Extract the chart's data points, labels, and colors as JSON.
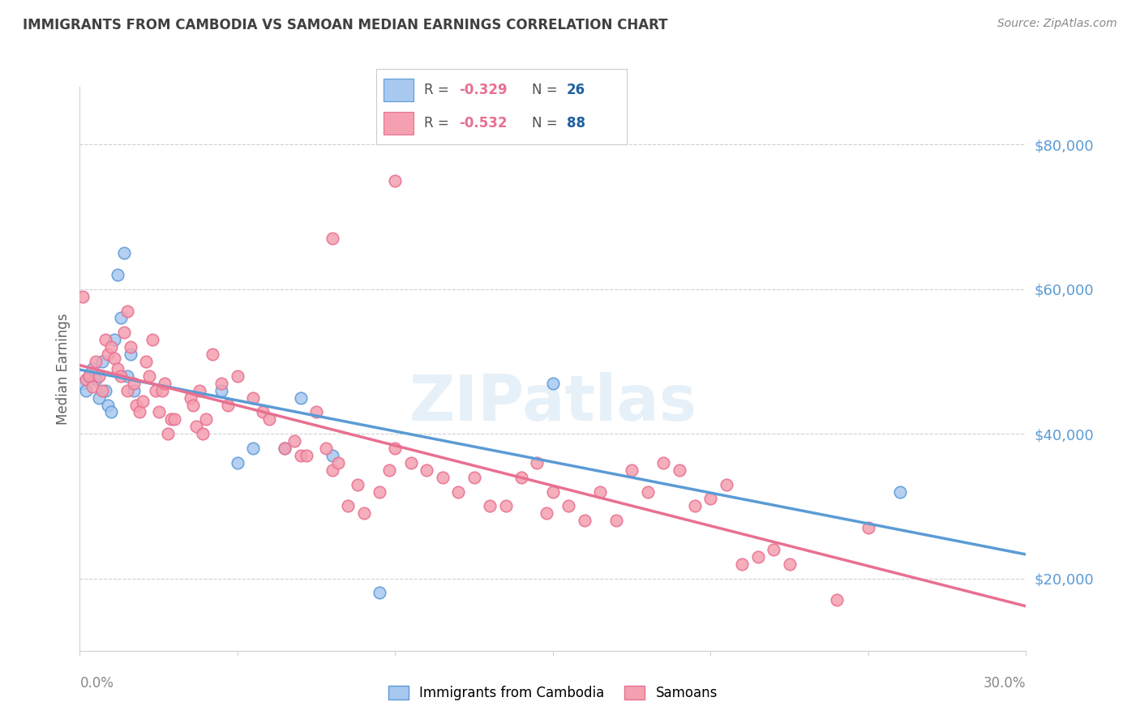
{
  "title": "IMMIGRANTS FROM CAMBODIA VS SAMOAN MEDIAN EARNINGS CORRELATION CHART",
  "source": "Source: ZipAtlas.com",
  "ylabel": "Median Earnings",
  "yticks": [
    20000,
    40000,
    60000,
    80000
  ],
  "ytick_labels": [
    "$20,000",
    "$40,000",
    "$60,000",
    "$80,000"
  ],
  "watermark": "ZIPatlas",
  "cambodia_color": "#a8c8f0",
  "samoan_color": "#f4a0b0",
  "cambodia_line_color": "#5b9bd5",
  "samoan_line_color": "#e87090",
  "background_color": "#ffffff",
  "grid_color": "#d0d0d0",
  "title_color": "#404040",
  "axis_label_color": "#5b9bd5",
  "legend_R_color": "#e87090",
  "legend_N_color": "#2060a0",
  "xlim": [
    0.0,
    0.3
  ],
  "ylim": [
    10000,
    88000
  ],
  "cambodia_points": [
    [
      0.001,
      47000
    ],
    [
      0.002,
      46000
    ],
    [
      0.003,
      48000
    ],
    [
      0.004,
      49000
    ],
    [
      0.005,
      47500
    ],
    [
      0.006,
      45000
    ],
    [
      0.007,
      50000
    ],
    [
      0.008,
      46000
    ],
    [
      0.009,
      44000
    ],
    [
      0.01,
      43000
    ],
    [
      0.011,
      53000
    ],
    [
      0.012,
      62000
    ],
    [
      0.013,
      56000
    ],
    [
      0.014,
      65000
    ],
    [
      0.015,
      48000
    ],
    [
      0.016,
      51000
    ],
    [
      0.017,
      46000
    ],
    [
      0.045,
      46000
    ],
    [
      0.05,
      36000
    ],
    [
      0.055,
      38000
    ],
    [
      0.065,
      38000
    ],
    [
      0.07,
      45000
    ],
    [
      0.08,
      37000
    ],
    [
      0.15,
      47000
    ],
    [
      0.26,
      32000
    ],
    [
      0.095,
      18000
    ]
  ],
  "samoan_points": [
    [
      0.001,
      59000
    ],
    [
      0.002,
      47500
    ],
    [
      0.003,
      48000
    ],
    [
      0.004,
      46500
    ],
    [
      0.005,
      50000
    ],
    [
      0.006,
      48000
    ],
    [
      0.007,
      46000
    ],
    [
      0.008,
      53000
    ],
    [
      0.009,
      51000
    ],
    [
      0.01,
      52000
    ],
    [
      0.011,
      50500
    ],
    [
      0.012,
      49000
    ],
    [
      0.013,
      48000
    ],
    [
      0.014,
      54000
    ],
    [
      0.015,
      46000
    ],
    [
      0.016,
      52000
    ],
    [
      0.017,
      47000
    ],
    [
      0.018,
      44000
    ],
    [
      0.019,
      43000
    ],
    [
      0.02,
      44500
    ],
    [
      0.021,
      50000
    ],
    [
      0.022,
      48000
    ],
    [
      0.023,
      53000
    ],
    [
      0.024,
      46000
    ],
    [
      0.025,
      43000
    ],
    [
      0.026,
      46000
    ],
    [
      0.027,
      47000
    ],
    [
      0.028,
      40000
    ],
    [
      0.029,
      42000
    ],
    [
      0.03,
      42000
    ],
    [
      0.035,
      45000
    ],
    [
      0.036,
      44000
    ],
    [
      0.037,
      41000
    ],
    [
      0.038,
      46000
    ],
    [
      0.039,
      40000
    ],
    [
      0.04,
      42000
    ],
    [
      0.042,
      51000
    ],
    [
      0.045,
      47000
    ],
    [
      0.047,
      44000
    ],
    [
      0.05,
      48000
    ],
    [
      0.055,
      45000
    ],
    [
      0.058,
      43000
    ],
    [
      0.06,
      42000
    ],
    [
      0.065,
      38000
    ],
    [
      0.068,
      39000
    ],
    [
      0.07,
      37000
    ],
    [
      0.072,
      37000
    ],
    [
      0.075,
      43000
    ],
    [
      0.078,
      38000
    ],
    [
      0.08,
      35000
    ],
    [
      0.082,
      36000
    ],
    [
      0.085,
      30000
    ],
    [
      0.088,
      33000
    ],
    [
      0.09,
      29000
    ],
    [
      0.095,
      32000
    ],
    [
      0.098,
      35000
    ],
    [
      0.1,
      38000
    ],
    [
      0.105,
      36000
    ],
    [
      0.11,
      35000
    ],
    [
      0.115,
      34000
    ],
    [
      0.12,
      32000
    ],
    [
      0.125,
      34000
    ],
    [
      0.13,
      30000
    ],
    [
      0.135,
      30000
    ],
    [
      0.14,
      34000
    ],
    [
      0.145,
      36000
    ],
    [
      0.148,
      29000
    ],
    [
      0.15,
      32000
    ],
    [
      0.155,
      30000
    ],
    [
      0.16,
      28000
    ],
    [
      0.165,
      32000
    ],
    [
      0.17,
      28000
    ],
    [
      0.175,
      35000
    ],
    [
      0.18,
      32000
    ],
    [
      0.185,
      36000
    ],
    [
      0.19,
      35000
    ],
    [
      0.195,
      30000
    ],
    [
      0.2,
      31000
    ],
    [
      0.205,
      33000
    ],
    [
      0.21,
      22000
    ],
    [
      0.215,
      23000
    ],
    [
      0.22,
      24000
    ],
    [
      0.225,
      22000
    ],
    [
      0.24,
      17000
    ],
    [
      0.25,
      27000
    ],
    [
      0.1,
      75000
    ],
    [
      0.08,
      67000
    ],
    [
      0.015,
      57000
    ]
  ]
}
